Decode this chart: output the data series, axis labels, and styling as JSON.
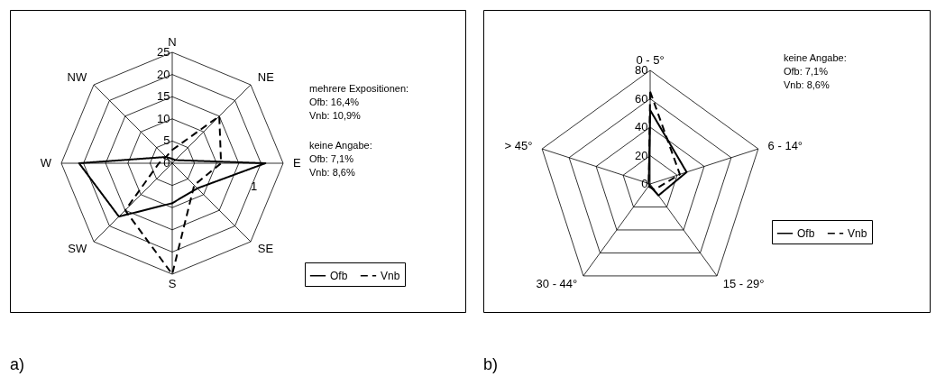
{
  "chart_data": [
    {
      "type": "radar",
      "categories": [
        "N",
        "NE",
        "E",
        "SE",
        "S",
        "SW",
        "W",
        "NW"
      ],
      "series": [
        {
          "name": "Ofb",
          "color": "#000000",
          "line_style": "solid",
          "values": [
            1,
            1,
            21,
            8,
            9,
            17,
            21,
            2
          ]
        },
        {
          "name": "Vnb",
          "color": "#000000",
          "line_style": "dashed",
          "values": [
            3,
            15,
            11,
            7,
            25,
            15,
            3,
            2
          ]
        }
      ],
      "ylim": [
        0,
        25
      ],
      "yticks": [
        0,
        5,
        10,
        15,
        20,
        25
      ],
      "grid": true,
      "legend": "bottom right",
      "marker": "none",
      "annotations": [
        "mehrere Expositionen:\nOfb: 16,4%\nVnb: 10,9%",
        "keine Angabe:\nOfb: 7,1%\nVnb: 8,6%",
        "1",
        "a)"
      ]
    },
    {
      "type": "radar",
      "categories": [
        "0 - 5°",
        "6 - 14°",
        "15 - 29°",
        "30 - 44°",
        "> 45°"
      ],
      "series": [
        {
          "name": "Ofb",
          "color": "#000000",
          "line_style": "solid",
          "values": [
            52,
            27,
            10,
            1,
            1
          ]
        },
        {
          "name": "Vnb",
          "color": "#000000",
          "line_style": "dashed",
          "values": [
            65,
            22,
            5,
            2,
            1
          ]
        }
      ],
      "ylim": [
        0,
        80
      ],
      "yticks": [
        0,
        20,
        40,
        60,
        80
      ],
      "grid": true,
      "legend": "bottom right",
      "marker": "none",
      "annotations": [
        "keine Angabe:\nOfb: 7,1%\nVnb: 8,6%",
        "b)"
      ]
    }
  ]
}
